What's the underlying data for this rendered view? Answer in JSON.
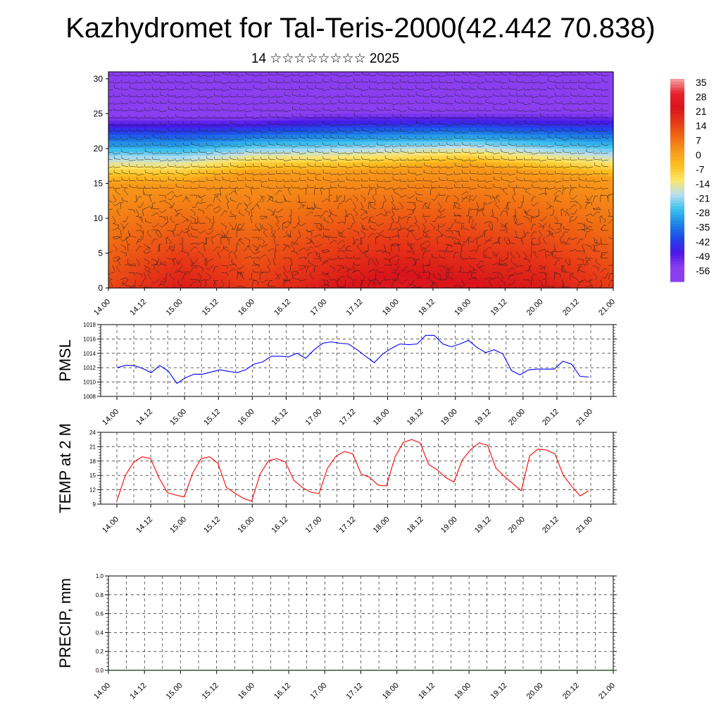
{
  "title": "Kazhydromet for Tal-Teris-2000(42.442 70.838)",
  "subtitle": "14 ☆☆☆☆☆☆☆☆ 2025",
  "x_tick_labels": [
    "14.00",
    "14.12",
    "15.00",
    "15.12",
    "16.00",
    "16.12",
    "17.00",
    "17.12",
    "18.00",
    "18.12",
    "19.00",
    "19.12",
    "20.00",
    "20.12",
    "21.00"
  ],
  "chart_data": [
    {
      "type": "heatmap",
      "name": "vertical temperature profile with wind barbs",
      "x_ticks": [
        "14.00",
        "14.12",
        "15.00",
        "15.12",
        "16.00",
        "16.12",
        "17.00",
        "17.12",
        "18.00",
        "18.12",
        "19.00",
        "19.12",
        "20.00",
        "20.12",
        "21.00"
      ],
      "y_ticks": [
        0,
        5,
        10,
        15,
        20,
        25,
        30
      ],
      "ylim": [
        0,
        31
      ],
      "colorbar": {
        "labels": [
          "35",
          "28",
          "21",
          "14",
          "7",
          "0",
          "-7",
          "-14",
          "-21",
          "-28",
          "-35",
          "-42",
          "-49",
          "-56"
        ],
        "colors": [
          "#f4a6a6",
          "#e8202a",
          "#d8141a",
          "#e83a18",
          "#f06a14",
          "#f89a1a",
          "#fbc020",
          "#fde66a",
          "#b8dff0",
          "#3cc0ee",
          "#1e86e6",
          "#2048ea",
          "#4a16e8",
          "#8a3ef0"
        ]
      },
      "temperature_profile": {
        "x": [
          "14.00",
          "15.00",
          "16.00",
          "17.00",
          "18.00",
          "19.00",
          "20.00",
          "21.00"
        ],
        "surface_temp_c": [
          12,
          20,
          14,
          20,
          24,
          22,
          20,
          14
        ],
        "zero_isotherm_km": [
          15,
          15,
          16.5,
          16.5,
          17,
          17.5,
          16.5,
          15.5
        ],
        "tropopause_km": [
          24.5,
          24.5,
          24.5,
          25,
          25,
          25,
          25,
          25
        ]
      },
      "grid": true
    },
    {
      "type": "line",
      "ylabel": "PMSL",
      "ylim": [
        1008,
        1018
      ],
      "y_ticks": [
        1008,
        1010,
        1012,
        1014,
        1016,
        1018
      ],
      "color": "#0000ff",
      "grid": true,
      "x_ticks": [
        "14.00",
        "14.12",
        "15.00",
        "15.12",
        "16.00",
        "16.12",
        "17.00",
        "17.12",
        "18.00",
        "18.12",
        "19.00",
        "19.12",
        "20.00",
        "20.12",
        "21.00"
      ],
      "values": [
        1012.0,
        1012.3,
        1012.3,
        1011.9,
        1011.3,
        1012.3,
        1011.5,
        1009.8,
        1010.6,
        1011.1,
        1011.1,
        1011.4,
        1011.7,
        1011.5,
        1011.3,
        1011.7,
        1012.5,
        1012.8,
        1013.6,
        1013.6,
        1013.5,
        1014.0,
        1013.3,
        1014.5,
        1015.4,
        1015.6,
        1015.4,
        1015.3,
        1014.5,
        1013.6,
        1012.7,
        1013.9,
        1014.7,
        1015.3,
        1015.2,
        1015.3,
        1016.5,
        1016.5,
        1015.3,
        1014.9,
        1015.3,
        1015.8,
        1014.8,
        1014.1,
        1014.5,
        1013.9,
        1011.6,
        1011.0,
        1011.7,
        1011.8,
        1011.8,
        1011.8,
        1012.9,
        1012.5,
        1010.8,
        1010.7
      ]
    },
    {
      "type": "line",
      "ylabel": "TEMP at 2 M",
      "ylim": [
        9,
        24
      ],
      "y_ticks": [
        9,
        12,
        15,
        18,
        21,
        24
      ],
      "color": "#ff0000",
      "grid": true,
      "x_ticks": [
        "14.00",
        "14.12",
        "15.00",
        "15.12",
        "16.00",
        "16.12",
        "17.00",
        "17.12",
        "18.00",
        "18.12",
        "19.00",
        "19.12",
        "20.00",
        "20.12",
        "21.00"
      ],
      "values": [
        9.7,
        15.0,
        17.8,
        18.9,
        18.5,
        14.5,
        11.4,
        10.9,
        10.5,
        15.5,
        18.5,
        18.9,
        17.5,
        12.5,
        11.3,
        10.2,
        9.6,
        15.3,
        18.1,
        18.5,
        17.8,
        14.0,
        12.5,
        11.5,
        11.2,
        16.5,
        19.0,
        20.0,
        19.5,
        15.3,
        14.6,
        13.0,
        12.8,
        18.8,
        21.9,
        22.5,
        21.8,
        17.3,
        16.2,
        14.6,
        13.6,
        18.2,
        20.4,
        21.8,
        21.3,
        16.5,
        14.8,
        13.3,
        11.8,
        19.1,
        20.5,
        20.3,
        19.5,
        15.0,
        12.7,
        10.7,
        11.8
      ]
    },
    {
      "type": "bar",
      "ylabel": "PRECIP, mm",
      "ylim": [
        0,
        1.0
      ],
      "y_ticks": [
        "0.0",
        "0.2",
        "0.4",
        "0.6",
        "0.8",
        "1.0"
      ],
      "grid": true,
      "x_ticks": [
        "14.00",
        "14.12",
        "15.00",
        "15.12",
        "16.00",
        "16.12",
        "17.00",
        "17.12",
        "18.00",
        "18.12",
        "19.00",
        "19.12",
        "20.00",
        "20.12",
        "21.00"
      ],
      "values": []
    }
  ]
}
